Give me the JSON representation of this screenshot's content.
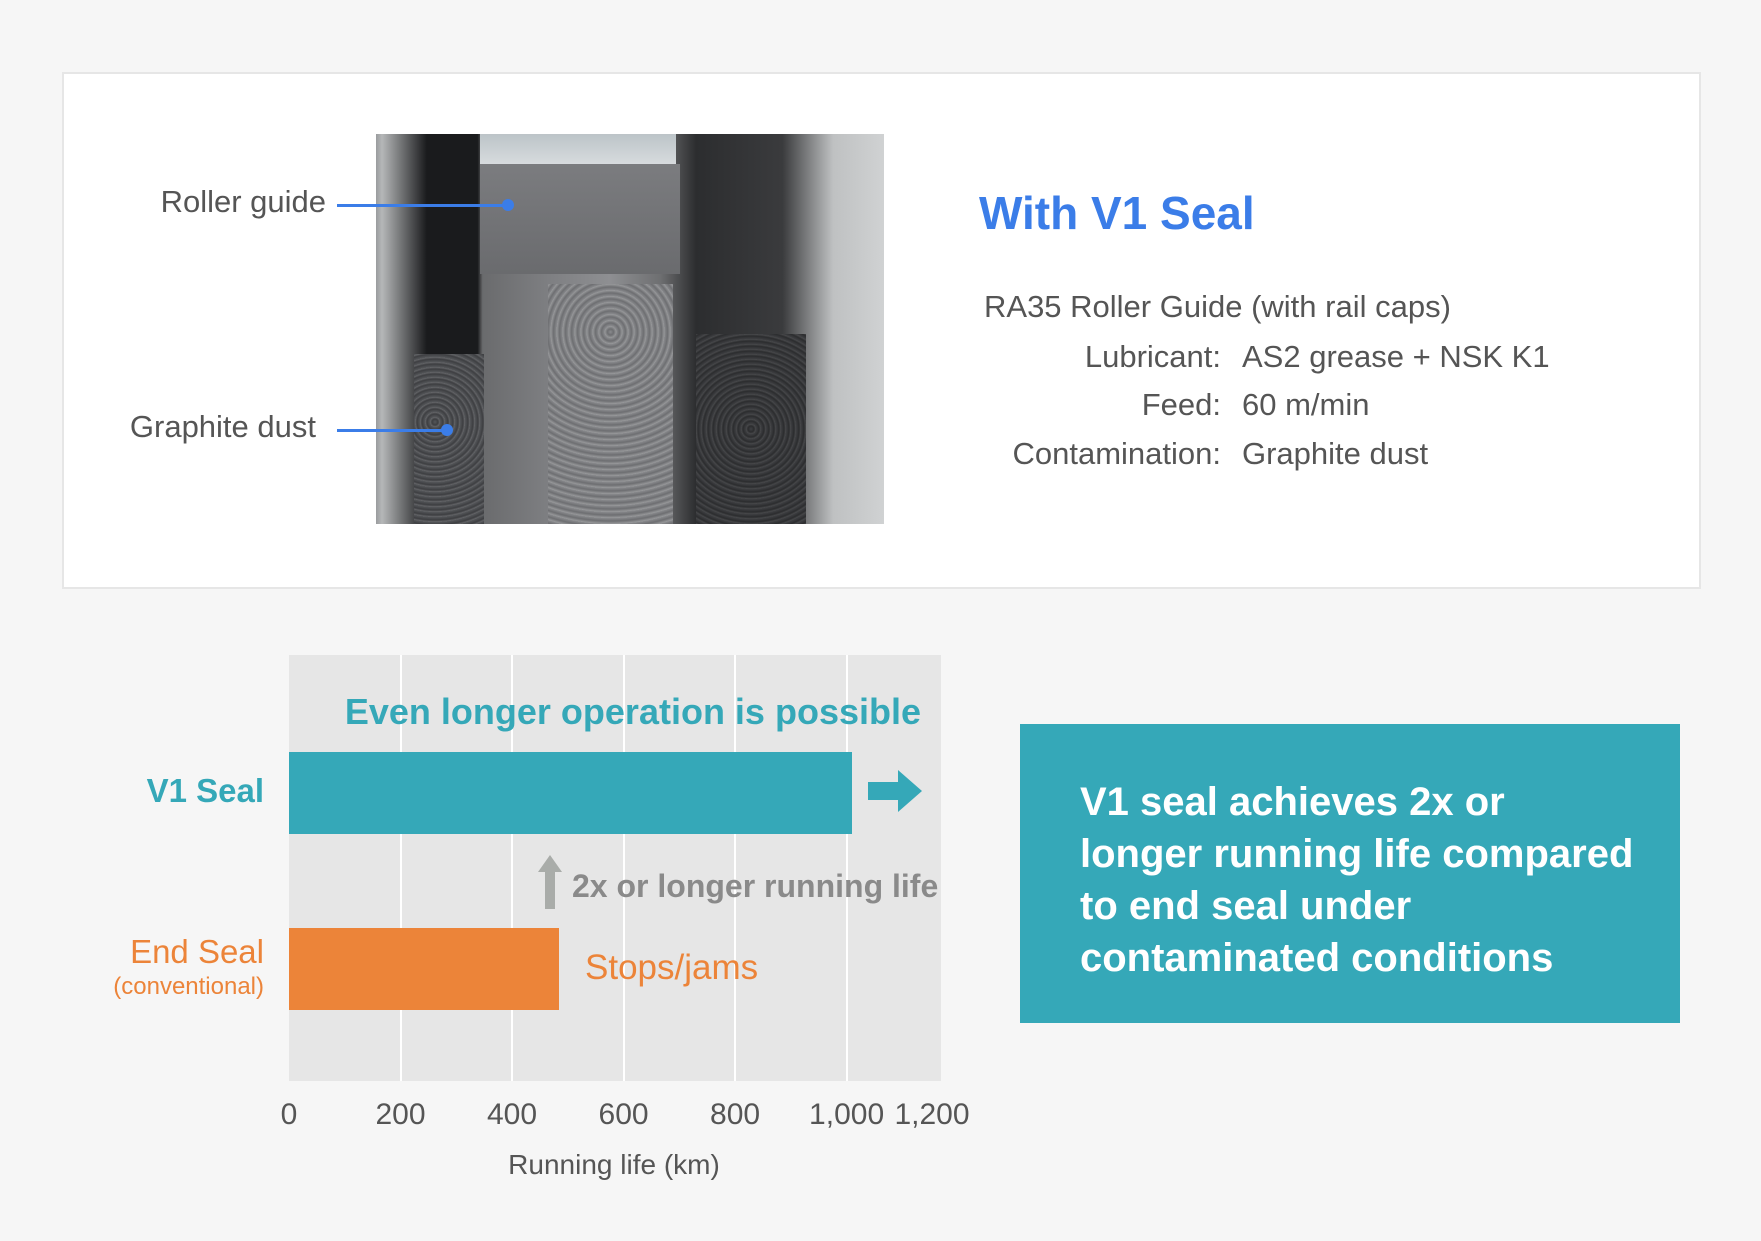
{
  "photo_panel": {
    "callouts": [
      {
        "label": "Roller guide"
      },
      {
        "label": "Graphite dust"
      }
    ],
    "title": "With V1 Seal",
    "product": "RA35 Roller Guide (with rail caps)",
    "specs": [
      {
        "key": "Lubricant:",
        "value": "AS2 grease + NSK K1"
      },
      {
        "key": "Feed:",
        "value": "60 m/min"
      },
      {
        "key": "Contamination:",
        "value": "Graphite dust"
      }
    ],
    "colors": {
      "accent": "#3b7de8",
      "text": "#555555"
    }
  },
  "chart_data": {
    "type": "bar",
    "orientation": "horizontal",
    "categories": [
      "V1 Seal",
      "End Seal"
    ],
    "category_sublabels": [
      "",
      "(conventional)"
    ],
    "values": [
      1010,
      485
    ],
    "colors": [
      "#35a8b8",
      "#ec8439"
    ],
    "xlabel": "Running life (km)",
    "xlim": [
      0,
      1200
    ],
    "xticks": [
      "0",
      "200",
      "400",
      "600",
      "800",
      "1,000",
      "1,200"
    ],
    "xtick_values": [
      0,
      200,
      400,
      600,
      800,
      1000,
      1200
    ],
    "grid": true,
    "annotations": {
      "v1": "Even longer operation is possible",
      "improvement": "2x or longer running life",
      "end_seal": "Stops/jams"
    }
  },
  "summary_box": {
    "lines": [
      "V1 seal achieves 2x or",
      "longer running life compared",
      "to end seal under",
      "contaminated conditions"
    ],
    "color": "#35a8b8"
  }
}
